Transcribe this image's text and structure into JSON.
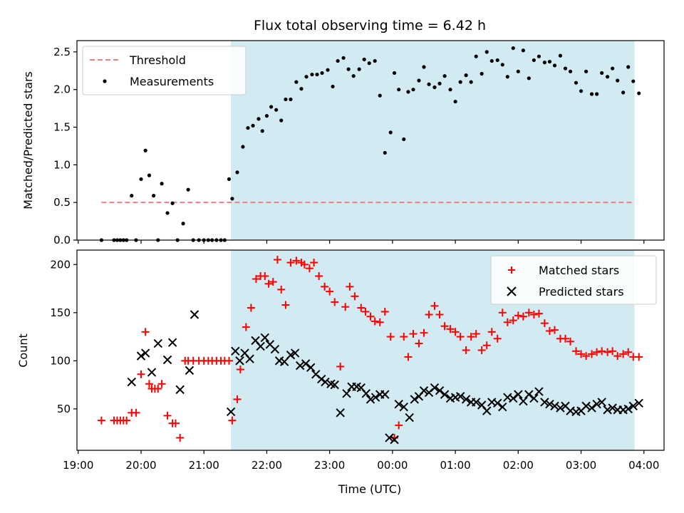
{
  "chart_data": [
    {
      "type": "scatter",
      "title": "Flux total observing time = 6.42 h",
      "xlabel": "",
      "ylabel": "Matched/Predicted stars",
      "ylim": [
        0,
        2.65
      ],
      "yticks": [
        "0.0",
        "0.5",
        "1.0",
        "1.5",
        "2.0",
        "2.5"
      ],
      "ytick_values": [
        0,
        0.5,
        1.0,
        1.5,
        2.0,
        2.5
      ],
      "xlim_hours": [
        18.98,
        28.32
      ],
      "shaded_span_hours": [
        21.43,
        27.85
      ],
      "shade_color": "#add8e6",
      "legend": {
        "placement": "top-left",
        "entries": [
          "Threshold",
          "Measurements"
        ]
      },
      "threshold": {
        "name": "Threshold",
        "value": 0.5,
        "x_range_hours": [
          19.37,
          27.85
        ],
        "color": "#f08080"
      },
      "measurements": {
        "name": "Measurements",
        "color": "#000000",
        "x_hours": [
          19.37,
          19.57,
          19.62,
          19.67,
          19.72,
          19.77,
          19.85,
          19.92,
          20.0,
          20.07,
          20.13,
          20.2,
          20.27,
          20.33,
          20.42,
          20.5,
          20.58,
          20.67,
          20.75,
          20.83,
          20.92,
          21.0,
          21.07,
          21.13,
          21.2,
          21.27,
          21.33,
          21.4,
          21.45,
          21.53,
          21.62,
          21.7,
          21.78,
          21.87,
          21.93,
          22.0,
          22.07,
          22.15,
          22.23,
          22.3,
          22.38,
          22.47,
          22.55,
          22.63,
          22.72,
          22.8,
          22.88,
          22.97,
          23.05,
          23.13,
          23.22,
          23.3,
          23.38,
          23.47,
          23.55,
          23.63,
          23.72,
          23.8,
          23.88,
          23.97,
          24.03,
          24.1,
          24.18,
          24.25,
          24.33,
          24.42,
          24.5,
          24.58,
          24.67,
          24.75,
          24.83,
          24.92,
          25.0,
          25.08,
          25.17,
          25.25,
          25.33,
          25.42,
          25.5,
          25.58,
          25.67,
          25.75,
          25.83,
          25.92,
          26.0,
          26.08,
          26.17,
          26.25,
          26.33,
          26.42,
          26.5,
          26.58,
          26.67,
          26.75,
          26.83,
          26.92,
          27.0,
          27.08,
          27.17,
          27.25,
          27.33,
          27.42,
          27.5,
          27.58,
          27.67,
          27.75,
          27.83,
          27.92
        ],
        "y": [
          0.0,
          0.0,
          0.0,
          0.0,
          0.0,
          0.0,
          0.59,
          0.0,
          0.81,
          1.19,
          0.86,
          0.59,
          0.0,
          0.75,
          0.36,
          0.49,
          0.0,
          0.22,
          0.67,
          0.0,
          0.0,
          0.0,
          0.0,
          0.0,
          0.0,
          0.0,
          0.0,
          0.81,
          0.55,
          0.9,
          1.24,
          1.49,
          1.52,
          1.61,
          1.45,
          1.65,
          1.77,
          1.73,
          1.59,
          1.87,
          1.87,
          2.1,
          2.01,
          2.17,
          2.2,
          2.2,
          2.22,
          2.26,
          2.04,
          2.38,
          2.42,
          2.27,
          2.18,
          2.27,
          2.4,
          2.35,
          2.38,
          1.92,
          1.16,
          1.43,
          2.22,
          2.0,
          1.34,
          1.97,
          2.0,
          2.12,
          2.3,
          2.07,
          2.03,
          2.08,
          2.18,
          2.0,
          1.84,
          2.1,
          2.19,
          2.1,
          2.44,
          2.21,
          2.5,
          2.38,
          2.39,
          2.33,
          2.17,
          2.55,
          2.24,
          2.52,
          2.15,
          2.39,
          2.44,
          2.36,
          2.37,
          2.32,
          2.45,
          2.28,
          2.24,
          2.09,
          1.98,
          2.24,
          1.94,
          1.94,
          2.22,
          2.17,
          2.28,
          2.12,
          1.96,
          2.3,
          2.11,
          1.95
        ]
      }
    },
    {
      "type": "scatter",
      "title": "",
      "xlabel": "Time (UTC)",
      "ylabel": "Count",
      "ylim": [
        7,
        215
      ],
      "yticks": [
        "50",
        "100",
        "150",
        "200"
      ],
      "ytick_values": [
        50,
        100,
        150,
        200
      ],
      "xlim_hours": [
        18.98,
        28.32
      ],
      "xticks": [
        "19:00",
        "20:00",
        "21:00",
        "22:00",
        "23:00",
        "00:00",
        "01:00",
        "02:00",
        "03:00",
        "04:00"
      ],
      "xtick_values_hours": [
        19,
        20,
        21,
        22,
        23,
        24,
        25,
        26,
        27,
        28
      ],
      "shaded_span_hours": [
        21.43,
        27.85
      ],
      "shade_color": "#add8e6",
      "legend": {
        "placement": "top-right",
        "entries": [
          "Matched stars",
          "Predicted stars"
        ]
      },
      "series": [
        {
          "name": "Matched stars",
          "marker": "plus",
          "color": "#ff0000",
          "x_hours": [
            19.37,
            19.57,
            19.62,
            19.67,
            19.72,
            19.77,
            19.85,
            19.92,
            20.0,
            20.07,
            20.13,
            20.17,
            20.22,
            20.27,
            20.33,
            20.42,
            20.5,
            20.55,
            20.62,
            20.7,
            20.75,
            20.83,
            20.92,
            21.0,
            21.07,
            21.13,
            21.2,
            21.27,
            21.33,
            21.4,
            21.45,
            21.53,
            21.58,
            21.67,
            21.75,
            21.83,
            21.9,
            21.97,
            22.03,
            22.1,
            22.17,
            22.23,
            22.3,
            22.38,
            22.47,
            22.55,
            22.6,
            22.68,
            22.75,
            22.83,
            22.92,
            23.0,
            23.08,
            23.17,
            23.25,
            23.32,
            23.4,
            23.5,
            23.57,
            23.65,
            23.72,
            23.8,
            23.88,
            23.97,
            24.03,
            24.1,
            24.18,
            24.25,
            24.33,
            24.42,
            24.5,
            24.58,
            24.67,
            24.75,
            24.83,
            24.92,
            25.0,
            25.08,
            25.17,
            25.25,
            25.33,
            25.42,
            25.5,
            25.58,
            25.67,
            25.75,
            25.83,
            25.92,
            26.0,
            26.08,
            26.17,
            26.25,
            26.33,
            26.42,
            26.5,
            26.58,
            26.67,
            26.75,
            26.83,
            26.92,
            27.0,
            27.08,
            27.17,
            27.25,
            27.33,
            27.42,
            27.5,
            27.58,
            27.67,
            27.75,
            27.83,
            27.92
          ],
          "y": [
            38,
            38,
            38,
            38,
            38,
            38,
            46,
            46,
            86,
            130,
            76,
            71,
            71,
            71,
            76,
            43,
            35,
            35,
            20,
            100,
            100,
            100,
            100,
            100,
            100,
            100,
            100,
            100,
            100,
            100,
            38,
            60,
            91,
            135,
            155,
            185,
            188,
            188,
            180,
            182,
            205,
            174,
            158,
            202,
            204,
            202,
            200,
            196,
            202,
            188,
            177,
            172,
            161,
            94,
            156,
            177,
            167,
            155,
            151,
            146,
            141,
            140,
            151,
            125,
            20,
            33,
            125,
            104,
            128,
            118,
            129,
            148,
            157,
            148,
            136,
            133,
            130,
            125,
            111,
            125,
            128,
            111,
            116,
            130,
            123,
            150,
            140,
            142,
            147,
            146,
            150,
            148,
            149,
            139,
            131,
            132,
            123,
            123,
            120,
            110,
            107,
            105,
            107,
            109,
            110,
            109,
            110,
            105,
            107,
            109,
            104,
            104
          ]
        },
        {
          "name": "Predicted stars",
          "marker": "x",
          "color": "#000000",
          "x_hours": [
            19.85,
            20.0,
            20.07,
            20.17,
            20.27,
            20.42,
            20.5,
            20.62,
            20.77,
            20.85,
            21.43,
            21.5,
            21.57,
            21.65,
            21.73,
            21.82,
            21.9,
            21.97,
            22.05,
            22.13,
            22.2,
            22.28,
            22.38,
            22.45,
            22.53,
            22.62,
            22.7,
            22.78,
            22.87,
            22.93,
            23.02,
            23.08,
            23.17,
            23.27,
            23.35,
            23.43,
            23.5,
            23.58,
            23.65,
            23.73,
            23.8,
            23.88,
            23.95,
            24.03,
            24.1,
            24.18,
            24.27,
            24.35,
            24.42,
            24.5,
            24.58,
            24.67,
            24.75,
            24.83,
            24.92,
            25.0,
            25.08,
            25.17,
            25.25,
            25.33,
            25.42,
            25.5,
            25.58,
            25.67,
            25.75,
            25.83,
            25.92,
            26.0,
            26.08,
            26.17,
            26.25,
            26.33,
            26.42,
            26.5,
            26.58,
            26.67,
            26.75,
            26.83,
            26.92,
            27.0,
            27.08,
            27.17,
            27.25,
            27.33,
            27.42,
            27.5,
            27.58,
            27.67,
            27.75,
            27.83,
            27.92
          ],
          "y": [
            78,
            105,
            108,
            88,
            118,
            101,
            119,
            70,
            90,
            148,
            47,
            110,
            100,
            108,
            102,
            121,
            115,
            124,
            117,
            112,
            100,
            99,
            106,
            108,
            95,
            97,
            93,
            86,
            81,
            78,
            76,
            75,
            46,
            66,
            73,
            73,
            72,
            66,
            60,
            62,
            65,
            65,
            20,
            18,
            55,
            52,
            41,
            60,
            63,
            69,
            67,
            72,
            69,
            65,
            61,
            62,
            63,
            60,
            57,
            57,
            54,
            48,
            57,
            56,
            52,
            62,
            61,
            65,
            58,
            65,
            61,
            68,
            57,
            55,
            53,
            51,
            53,
            48,
            47,
            48,
            53,
            51,
            55,
            57,
            49,
            51,
            49,
            49,
            50,
            53,
            56
          ]
        }
      ]
    }
  ]
}
